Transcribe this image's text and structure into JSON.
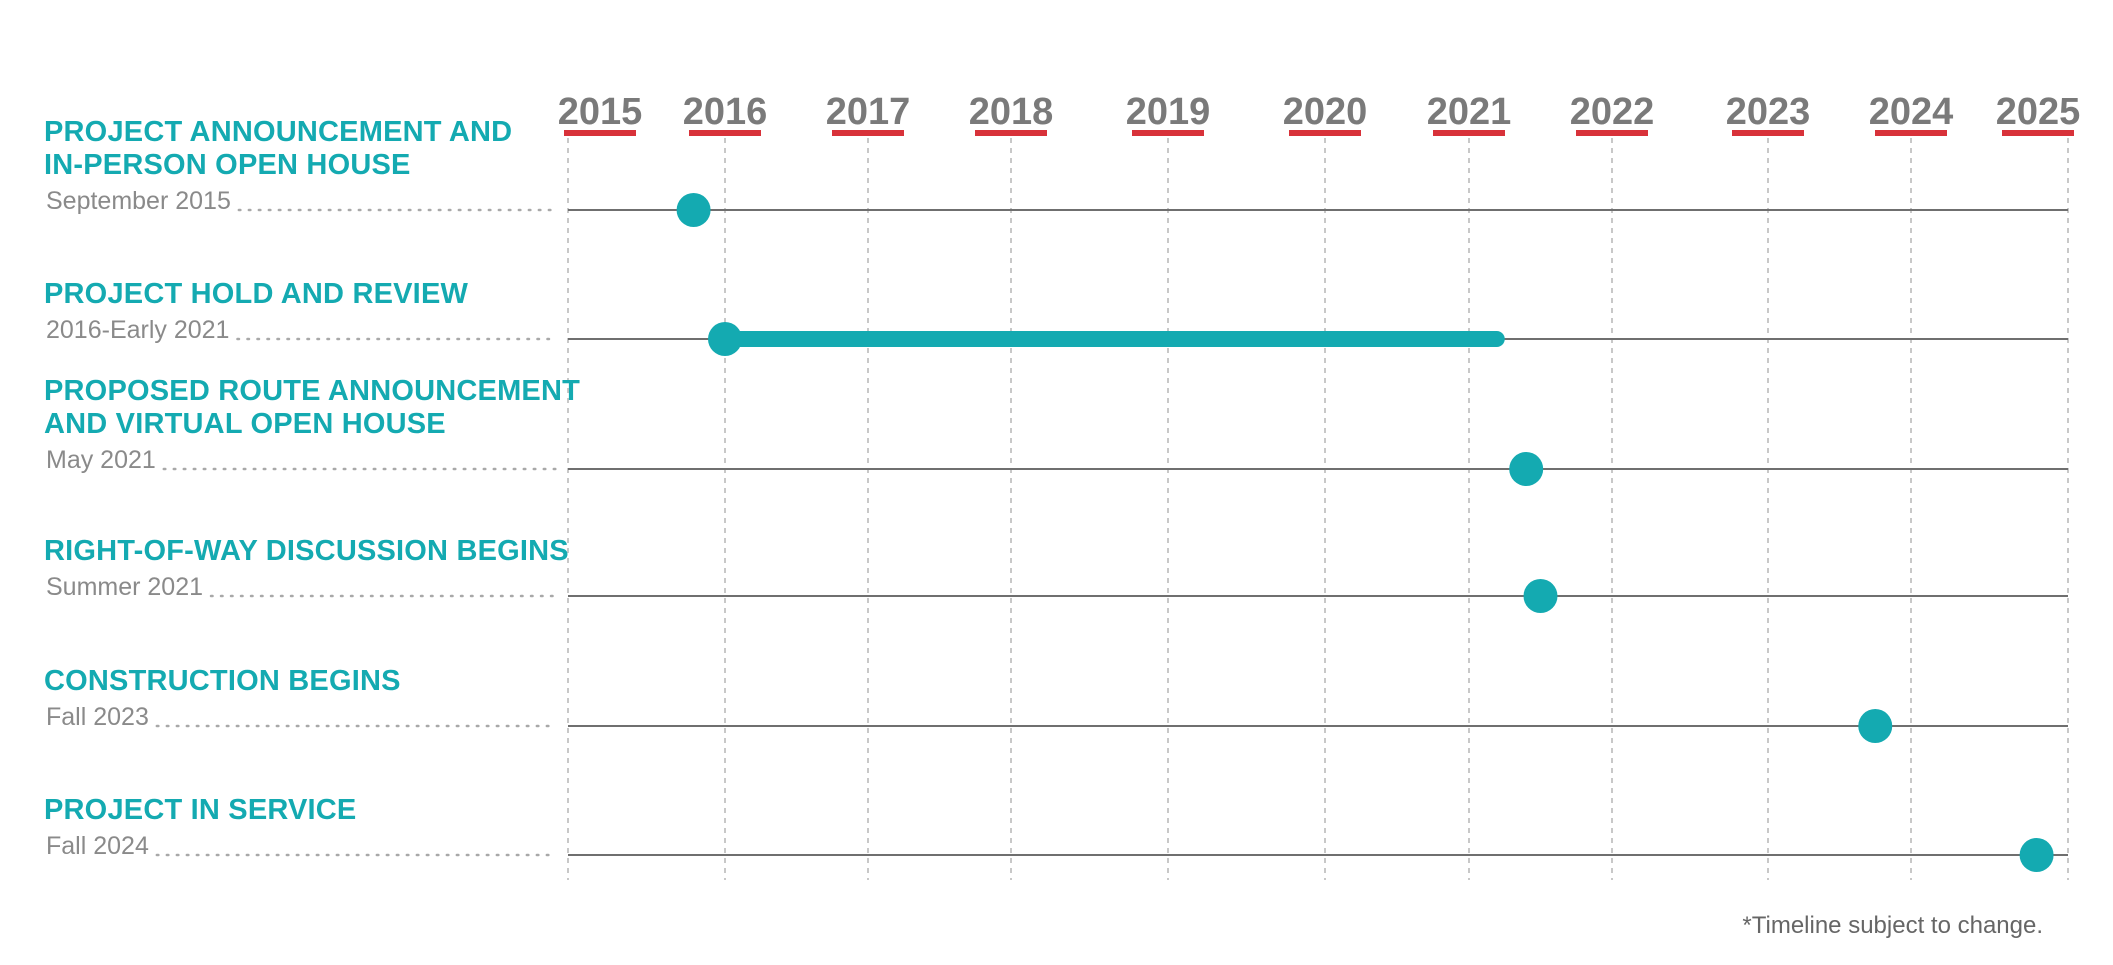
{
  "colors": {
    "accent": "#14aab1",
    "year_text": "#7a7a7a",
    "year_underline": "#d8323a",
    "date_text": "#8a8a8a",
    "row_line": "#6f6f6f",
    "grid_line": "#b5b5b5",
    "leader_dots": "#a8a8a8",
    "footnote_text": "#666666"
  },
  "chart_data": {
    "type": "timeline",
    "x_axis": {
      "ticks": [
        "2015",
        "2016",
        "2017",
        "2018",
        "2019",
        "2020",
        "2021",
        "2022",
        "2023",
        "2024",
        "2025"
      ],
      "range": [
        2015.0,
        2025.0
      ]
    },
    "milestones": [
      {
        "title_lines": [
          "PROJECT ANNOUNCEMENT AND",
          "IN-PERSON OPEN HOUSE"
        ],
        "date_label": "September 2015",
        "start": 2015.8,
        "end": null
      },
      {
        "title_lines": [
          "PROJECT HOLD AND REVIEW"
        ],
        "date_label": "2016-Early 2021",
        "start": 2016.0,
        "end": 2021.25
      },
      {
        "title_lines": [
          "PROPOSED ROUTE ANNOUNCEMENT",
          "AND VIRTUAL OPEN HOUSE"
        ],
        "date_label": "May 2021",
        "start": 2021.4,
        "end": null
      },
      {
        "title_lines": [
          "RIGHT-OF-WAY DISCUSSION BEGINS"
        ],
        "date_label": "Summer 2021",
        "start": 2021.5,
        "end": null
      },
      {
        "title_lines": [
          "CONSTRUCTION BEGINS"
        ],
        "date_label": "Fall 2023",
        "start": 2023.75,
        "end": null
      },
      {
        "title_lines": [
          "PROJECT IN SERVICE"
        ],
        "date_label": "Fall 2024",
        "start": 2024.8,
        "end": null
      }
    ],
    "footnote": "*Timeline subject to change."
  }
}
